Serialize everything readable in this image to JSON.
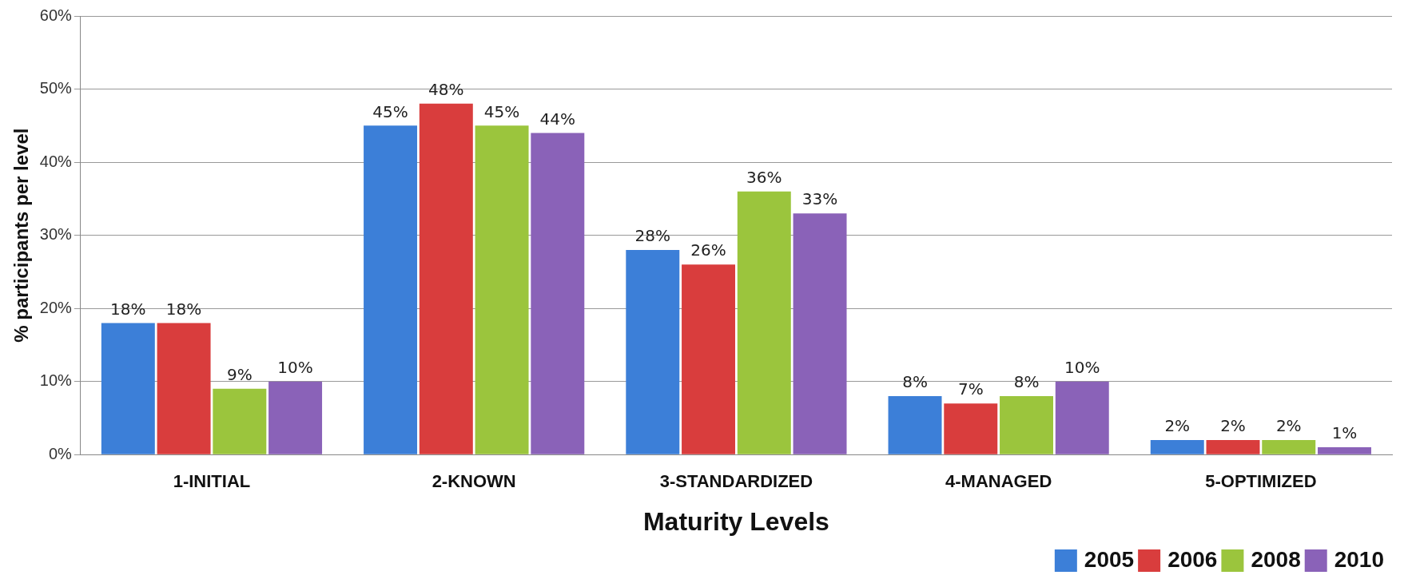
{
  "chart_data": {
    "type": "bar",
    "xlabel": "Maturity Levels",
    "ylabel": "% participants per level",
    "categories": [
      "1-INITIAL",
      "2-KNOWN",
      "3-STANDARDIZED",
      "4-MANAGED",
      "5-OPTIMIZED"
    ],
    "series": [
      {
        "name": "2005",
        "color": "#3c7fd8",
        "values": [
          18,
          45,
          28,
          8,
          2
        ],
        "value_labels": [
          "18%",
          "45%",
          "28%",
          "8%",
          "2%"
        ]
      },
      {
        "name": "2006",
        "color": "#d93d3d",
        "values": [
          18,
          48,
          26,
          7,
          2
        ],
        "value_labels": [
          "18%",
          "48%",
          "26%",
          "7%",
          "2%"
        ]
      },
      {
        "name": "2008",
        "color": "#9bc53d",
        "values": [
          9,
          45,
          36,
          8,
          2
        ],
        "value_labels": [
          "9%",
          "45%",
          "36%",
          "8%",
          "2%"
        ]
      },
      {
        "name": "2010",
        "color": "#8a62b8",
        "values": [
          10,
          44,
          33,
          10,
          1
        ],
        "value_labels": [
          "10%",
          "44%",
          "33%",
          "10%",
          "1%"
        ]
      }
    ],
    "ylim": [
      0,
      60
    ],
    "yticks": [
      {
        "value": 0,
        "label": "0%"
      },
      {
        "value": 10,
        "label": "10%"
      },
      {
        "value": 20,
        "label": "20%"
      },
      {
        "value": 30,
        "label": "30%"
      },
      {
        "value": 40,
        "label": "40%"
      },
      {
        "value": 50,
        "label": "50%"
      },
      {
        "value": 60,
        "label": "60%"
      }
    ],
    "grid": "y",
    "legend": "bottom right"
  }
}
